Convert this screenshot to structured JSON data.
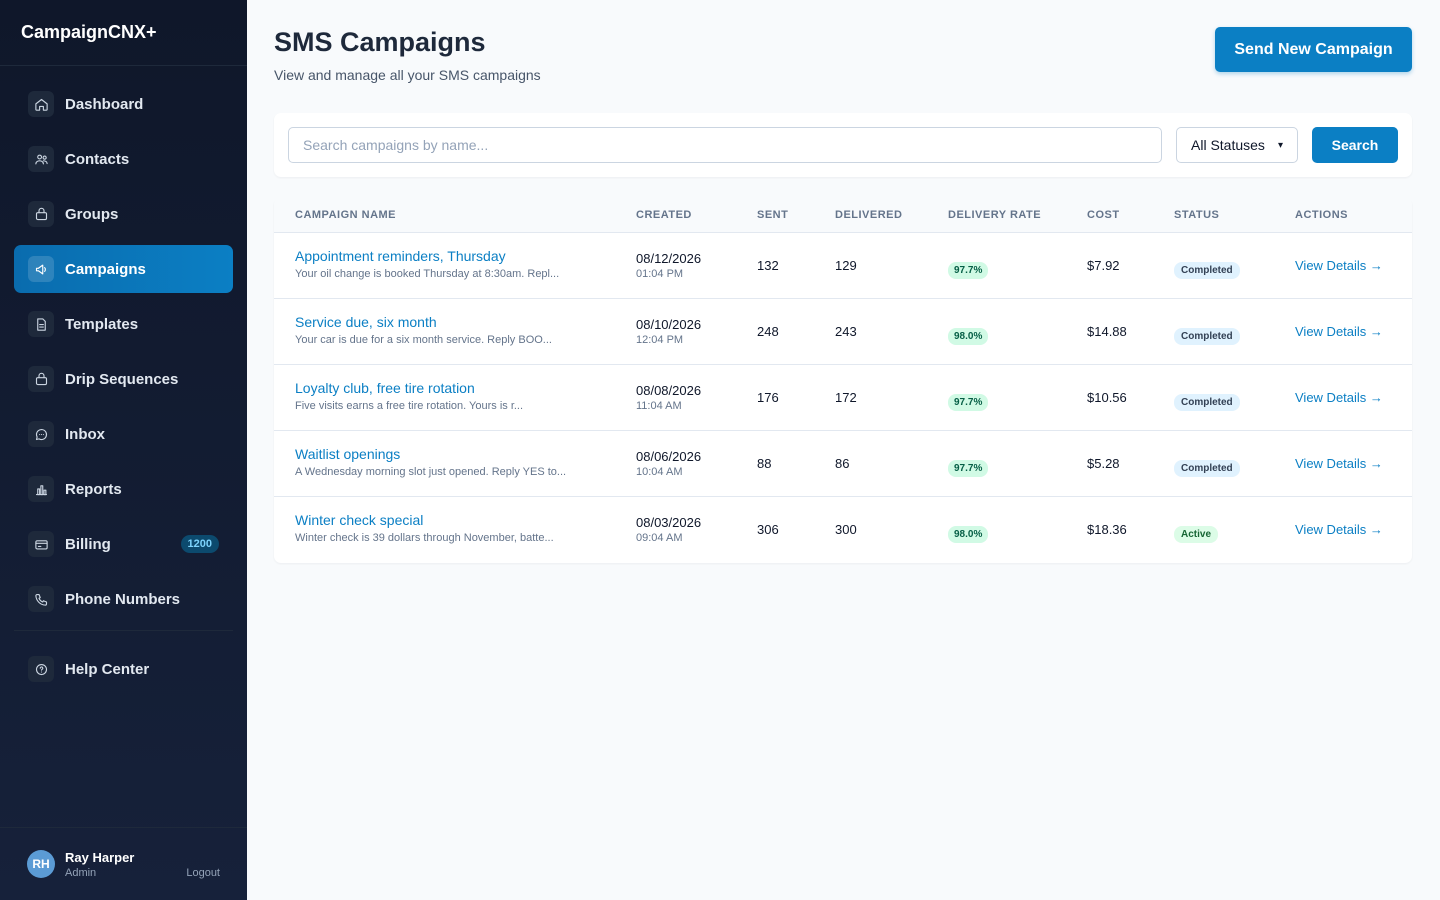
{
  "brand": "CampaignCNX+",
  "nav": [
    {
      "label": "Dashboard",
      "icon": "home-icon"
    },
    {
      "label": "Contacts",
      "icon": "users-icon"
    },
    {
      "label": "Groups",
      "icon": "folder-icon"
    },
    {
      "label": "Campaigns",
      "icon": "megaphone-icon",
      "active": true
    },
    {
      "label": "Templates",
      "icon": "document-icon"
    },
    {
      "label": "Drip Sequences",
      "icon": "layers-icon"
    },
    {
      "label": "Inbox",
      "icon": "chat-icon"
    },
    {
      "label": "Reports",
      "icon": "bar-chart-icon"
    },
    {
      "label": "Billing",
      "icon": "credit-card-icon",
      "badge": "1200"
    },
    {
      "label": "Phone Numbers",
      "icon": "phone-icon"
    }
  ],
  "help": {
    "label": "Help Center",
    "icon": "help-icon"
  },
  "user": {
    "initials": "RH",
    "name": "Ray Harper",
    "role": "Admin",
    "logout": "Logout"
  },
  "header": {
    "title": "SMS Campaigns",
    "subtitle": "View and manage all your SMS campaigns",
    "primary_button": "Send New Campaign"
  },
  "filters": {
    "search_placeholder": "Search campaigns by name...",
    "status_value": "All Statuses",
    "search_button": "Search"
  },
  "table": {
    "columns": [
      "Campaign Name",
      "Created",
      "Sent",
      "Delivered",
      "Delivery Rate",
      "Cost",
      "Status",
      "Actions"
    ],
    "rows": [
      {
        "name": "Appointment reminders, Thursday",
        "preview": "Your oil change is booked Thursday at 8:30am. Repl...",
        "date": "08/12/2026",
        "time": "01:04 PM",
        "sent": "132",
        "delivered": "129",
        "rate": "97.7%",
        "cost": "$7.92",
        "status": "Completed",
        "action": "View Details →"
      },
      {
        "name": "Service due, six month",
        "preview": "Your car is due for a six month service. Reply BOO...",
        "date": "08/10/2026",
        "time": "12:04 PM",
        "sent": "248",
        "delivered": "243",
        "rate": "98.0%",
        "cost": "$14.88",
        "status": "Completed",
        "action": "View Details →"
      },
      {
        "name": "Loyalty club, free tire rotation",
        "preview": "Five visits earns a free tire rotation. Yours is r...",
        "date": "08/08/2026",
        "time": "11:04 AM",
        "sent": "176",
        "delivered": "172",
        "rate": "97.7%",
        "cost": "$10.56",
        "status": "Completed",
        "action": "View Details →"
      },
      {
        "name": "Waitlist openings",
        "preview": "A Wednesday morning slot just opened. Reply YES to...",
        "date": "08/06/2026",
        "time": "10:04 AM",
        "sent": "88",
        "delivered": "86",
        "rate": "97.7%",
        "cost": "$5.28",
        "status": "Completed",
        "action": "View Details →"
      },
      {
        "name": "Winter check special",
        "preview": "Winter check is 39 dollars through November, batte...",
        "date": "08/03/2026",
        "time": "09:04 AM",
        "sent": "306",
        "delivered": "300",
        "rate": "98.0%",
        "cost": "$18.36",
        "status": "Active",
        "action": "View Details →"
      }
    ]
  },
  "colors": {
    "accent": "#0b7fc4",
    "sidebar_bg": "#0f172a",
    "page_bg": "#f8fafc",
    "success_pill": "#d1fae5"
  }
}
